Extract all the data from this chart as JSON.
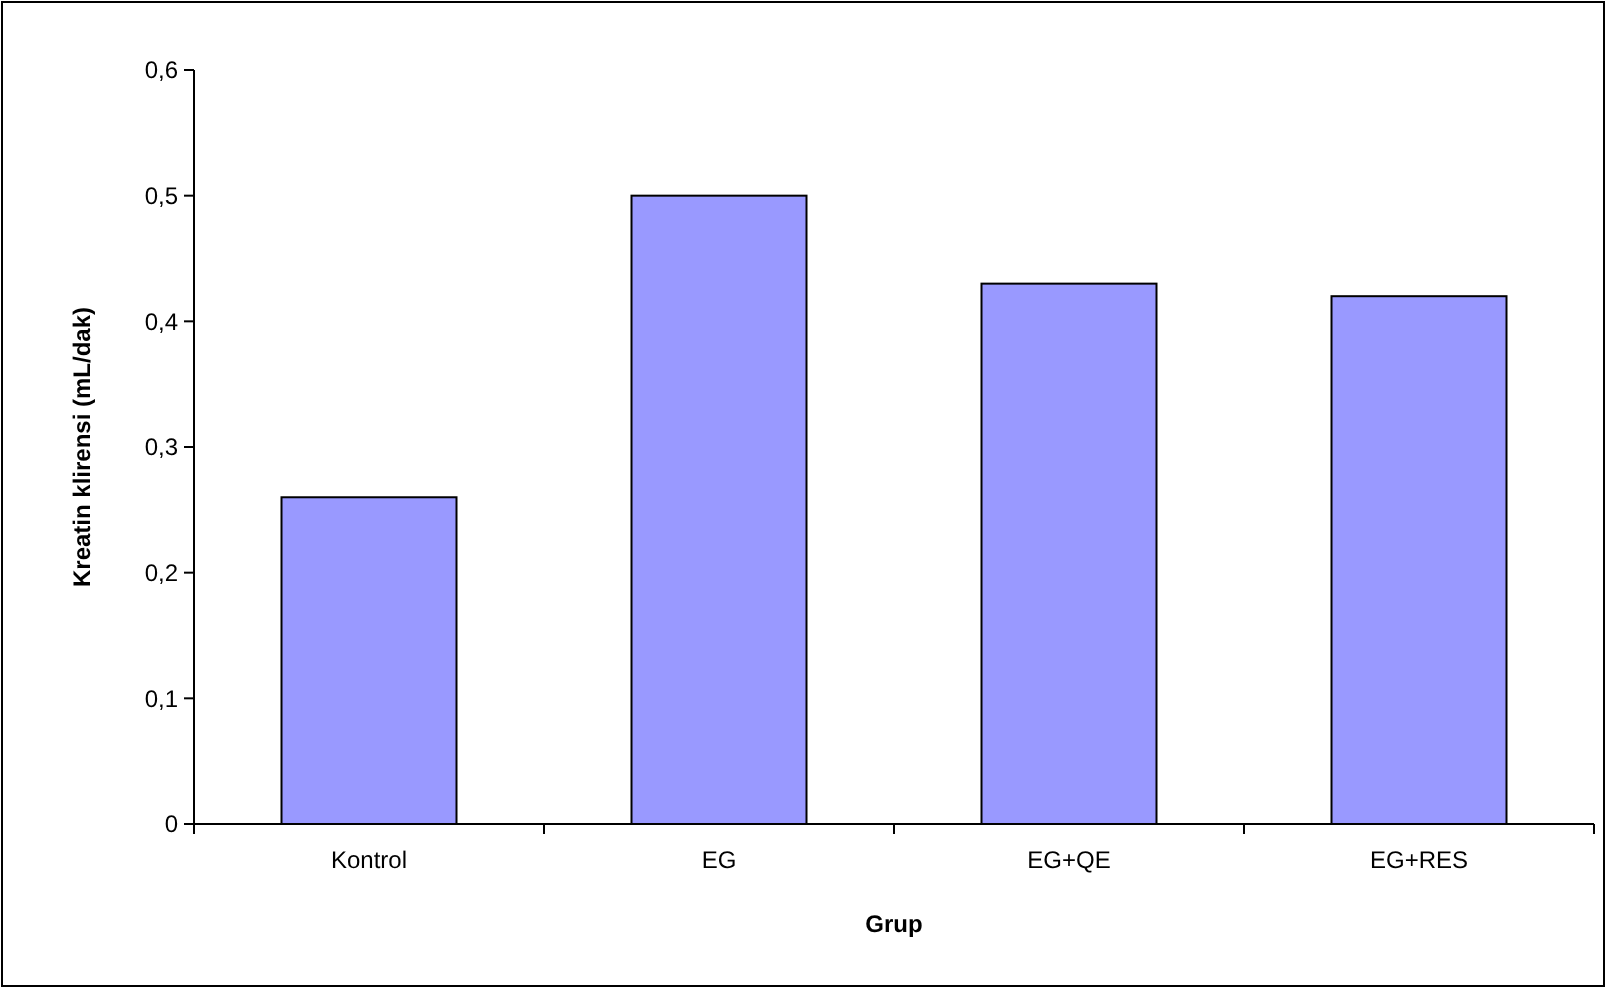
{
  "chart_data": {
    "type": "bar",
    "xlabel": "Grup",
    "ylabel": "Kreatin klirensi (mL/dak)",
    "categories": [
      "Kontrol",
      "EG",
      "EG+QE",
      "EG+RES"
    ],
    "values": [
      0.26,
      0.5,
      0.43,
      0.42
    ],
    "color": "#9999ff",
    "ylim": [
      0,
      0.6
    ],
    "yticks": [
      0,
      {
        "value": 0.1,
        "label": "0,1"
      },
      {
        "value": 0.2,
        "label": "0,2"
      },
      {
        "value": 0.3,
        "label": "0,3"
      },
      {
        "value": 0.4,
        "label": "0,4"
      },
      {
        "value": 0.5,
        "label": "0,5"
      },
      {
        "value": 0.6,
        "label": "0,6"
      }
    ],
    "grid": false
  }
}
